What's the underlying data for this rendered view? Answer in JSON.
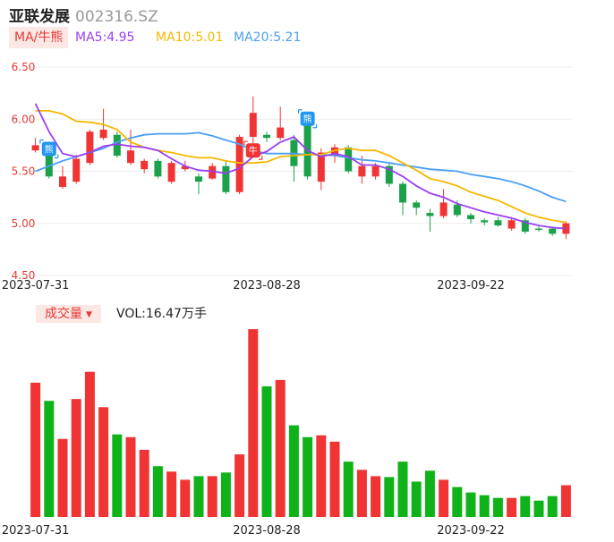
{
  "stock": {
    "name": "亚联发展",
    "code": "002316.SZ"
  },
  "ma_legend": {
    "tag": "MA/牛熊",
    "ma5": "MA5:4.95",
    "ma10": "MA10:5.01",
    "ma20": "MA20:5.21",
    "ma5_color": "#9b3ff0",
    "ma10_color": "#f5b800",
    "ma20_color": "#4a9ff5"
  },
  "volume_legend": {
    "tag": "成交量",
    "caret": "▼",
    "value": "VOL:16.47万手"
  },
  "colors": {
    "up": "#f03434",
    "down": "#1aa14a",
    "down_volume": "#10b21a",
    "price_axis": "#e53935"
  },
  "chart_data": {
    "type": "candlestick",
    "y_ticks": [
      "6.50",
      "6.00",
      "5.50",
      "5.00",
      "4.50"
    ],
    "ylim": [
      4.5,
      6.5
    ],
    "x_tick_labels": [
      {
        "label": "2023-07-31",
        "index": 0
      },
      {
        "label": "2023-08-28",
        "index": 17
      },
      {
        "label": "2023-09-22",
        "index": 32
      }
    ],
    "candles": [
      {
        "o": 5.7,
        "c": 5.75,
        "h": 5.82,
        "l": 5.68
      },
      {
        "o": 5.66,
        "c": 5.45,
        "h": 5.68,
        "l": 5.43
      },
      {
        "o": 5.35,
        "c": 5.45,
        "h": 5.55,
        "l": 5.33
      },
      {
        "o": 5.4,
        "c": 5.62,
        "h": 5.66,
        "l": 5.38
      },
      {
        "o": 5.58,
        "c": 5.88,
        "h": 5.9,
        "l": 5.56
      },
      {
        "o": 5.82,
        "c": 5.9,
        "h": 6.1,
        "l": 5.8
      },
      {
        "o": 5.85,
        "c": 5.65,
        "h": 5.88,
        "l": 5.63
      },
      {
        "o": 5.58,
        "c": 5.7,
        "h": 5.9,
        "l": 5.56
      },
      {
        "o": 5.52,
        "c": 5.6,
        "h": 5.62,
        "l": 5.48
      },
      {
        "o": 5.6,
        "c": 5.45,
        "h": 5.62,
        "l": 5.43
      },
      {
        "o": 5.4,
        "c": 5.58,
        "h": 5.6,
        "l": 5.38
      },
      {
        "o": 5.52,
        "c": 5.55,
        "h": 5.6,
        "l": 5.5
      },
      {
        "o": 5.45,
        "c": 5.4,
        "h": 5.48,
        "l": 5.28
      },
      {
        "o": 5.43,
        "c": 5.55,
        "h": 5.58,
        "l": 5.42
      },
      {
        "o": 5.55,
        "c": 5.3,
        "h": 5.6,
        "l": 5.28
      },
      {
        "o": 5.3,
        "c": 5.83,
        "h": 5.85,
        "l": 5.28
      },
      {
        "o": 5.83,
        "c": 6.06,
        "h": 6.22,
        "l": 5.7
      },
      {
        "o": 5.85,
        "c": 5.82,
        "h": 5.88,
        "l": 5.78
      },
      {
        "o": 5.82,
        "c": 5.92,
        "h": 6.12,
        "l": 5.8
      },
      {
        "o": 5.8,
        "c": 5.55,
        "h": 5.85,
        "l": 5.4
      },
      {
        "o": 5.95,
        "c": 5.45,
        "h": 5.97,
        "l": 5.42
      },
      {
        "o": 5.4,
        "c": 5.68,
        "h": 5.72,
        "l": 5.32
      },
      {
        "o": 5.65,
        "c": 5.73,
        "h": 5.76,
        "l": 5.58
      },
      {
        "o": 5.73,
        "c": 5.5,
        "h": 5.75,
        "l": 5.48
      },
      {
        "o": 5.45,
        "c": 5.55,
        "h": 5.65,
        "l": 5.38
      },
      {
        "o": 5.45,
        "c": 5.55,
        "h": 5.58,
        "l": 5.42
      },
      {
        "o": 5.55,
        "c": 5.38,
        "h": 5.58,
        "l": 5.35
      },
      {
        "o": 5.38,
        "c": 5.2,
        "h": 5.4,
        "l": 5.08
      },
      {
        "o": 5.2,
        "c": 5.15,
        "h": 5.22,
        "l": 5.08
      },
      {
        "o": 5.1,
        "c": 5.07,
        "h": 5.14,
        "l": 4.92
      },
      {
        "o": 5.07,
        "c": 5.2,
        "h": 5.33,
        "l": 5.05
      },
      {
        "o": 5.18,
        "c": 5.08,
        "h": 5.22,
        "l": 5.06
      },
      {
        "o": 5.08,
        "c": 5.04,
        "h": 5.1,
        "l": 5.0
      },
      {
        "o": 5.03,
        "c": 5.01,
        "h": 5.05,
        "l": 4.98
      },
      {
        "o": 5.03,
        "c": 4.98,
        "h": 5.06,
        "l": 4.97
      },
      {
        "o": 4.95,
        "c": 5.03,
        "h": 5.06,
        "l": 4.93
      },
      {
        "o": 5.03,
        "c": 4.92,
        "h": 5.05,
        "l": 4.9
      },
      {
        "o": 4.95,
        "c": 4.94,
        "h": 4.98,
        "l": 4.92
      },
      {
        "o": 4.95,
        "c": 4.9,
        "h": 4.97,
        "l": 4.88
      },
      {
        "o": 4.9,
        "c": 5.0,
        "h": 5.02,
        "l": 4.85
      }
    ],
    "ma5": [
      6.15,
      5.88,
      5.67,
      5.64,
      5.68,
      5.74,
      5.76,
      5.74,
      5.73,
      5.7,
      5.62,
      5.55,
      5.51,
      5.5,
      5.48,
      5.53,
      5.64,
      5.69,
      5.78,
      5.83,
      5.7,
      5.64,
      5.67,
      5.64,
      5.56,
      5.56,
      5.52,
      5.45,
      5.36,
      5.29,
      5.25,
      5.19,
      5.15,
      5.11,
      5.08,
      5.05,
      5.01,
      4.98,
      4.96,
      4.95
    ],
    "ma10": [
      6.08,
      6.08,
      6.05,
      5.98,
      5.97,
      5.95,
      5.9,
      5.78,
      5.73,
      5.7,
      5.68,
      5.65,
      5.63,
      5.63,
      5.6,
      5.58,
      5.58,
      5.59,
      5.64,
      5.65,
      5.66,
      5.66,
      5.7,
      5.72,
      5.7,
      5.7,
      5.65,
      5.58,
      5.51,
      5.43,
      5.4,
      5.36,
      5.3,
      5.26,
      5.22,
      5.16,
      5.1,
      5.06,
      5.03,
      5.01
    ],
    "ma20": [
      5.5,
      5.55,
      5.6,
      5.64,
      5.68,
      5.72,
      5.78,
      5.82,
      5.85,
      5.86,
      5.86,
      5.86,
      5.87,
      5.84,
      5.8,
      5.76,
      5.7,
      5.67,
      5.67,
      5.67,
      5.66,
      5.66,
      5.65,
      5.63,
      5.61,
      5.6,
      5.58,
      5.56,
      5.54,
      5.52,
      5.51,
      5.5,
      5.47,
      5.45,
      5.43,
      5.4,
      5.36,
      5.31,
      5.25,
      5.21
    ],
    "markers": [
      {
        "index": 1,
        "label": "熊",
        "color": "#2196f3"
      },
      {
        "index": 16,
        "label": "牛",
        "color": "#f03434"
      },
      {
        "index": 20,
        "label": "熊",
        "color": "#2196f3"
      }
    ],
    "volume": {
      "ylim": [
        0,
        210
      ],
      "values": [
        148,
        128,
        86,
        130,
        160,
        121,
        91,
        88,
        74,
        56,
        50,
        41,
        45,
        45,
        49,
        69,
        207,
        144,
        151,
        101,
        88,
        90,
        83,
        61,
        52,
        45,
        44,
        61,
        39,
        51,
        41,
        33,
        27,
        24,
        21,
        21,
        23,
        18,
        23,
        35
      ]
    }
  }
}
